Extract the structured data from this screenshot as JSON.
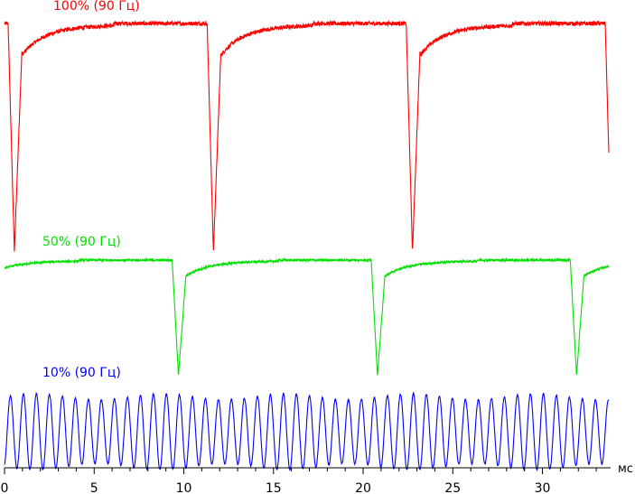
{
  "chart_data": {
    "type": "line",
    "title": "",
    "xlabel": "мс",
    "ylabel": "",
    "xlim": [
      0,
      33.8
    ],
    "grid": false,
    "x_major_ticks": [
      0,
      5,
      10,
      15,
      20,
      25,
      30
    ],
    "x_minor_step": 1,
    "series": [
      {
        "name": "100% (90 Гц)",
        "color": "#ff0000",
        "pattern": "periodic-dip",
        "period_ms": 11.1,
        "first_dip_ms": 0.55,
        "dip_width_ms": 0.35,
        "level_high": 1.0,
        "level_low": 0.0,
        "x_start": 0,
        "x_end": 33.7
      },
      {
        "name": "50% (90 Гц)",
        "color": "#00e000",
        "pattern": "periodic-dip",
        "period_ms": 11.1,
        "first_dip_ms": 9.7,
        "dip_width_ms": 0.35,
        "level_high": 1.0,
        "level_low": 0.0,
        "x_start": 0,
        "x_end": 33.7
      },
      {
        "name": "10% (90 Гц)",
        "color": "#0000ff",
        "pattern": "oscillation",
        "cycle_ms": 0.725,
        "level_high": 1.0,
        "level_low": 0.0,
        "x_start": 0,
        "x_end": 33.7
      }
    ]
  }
}
